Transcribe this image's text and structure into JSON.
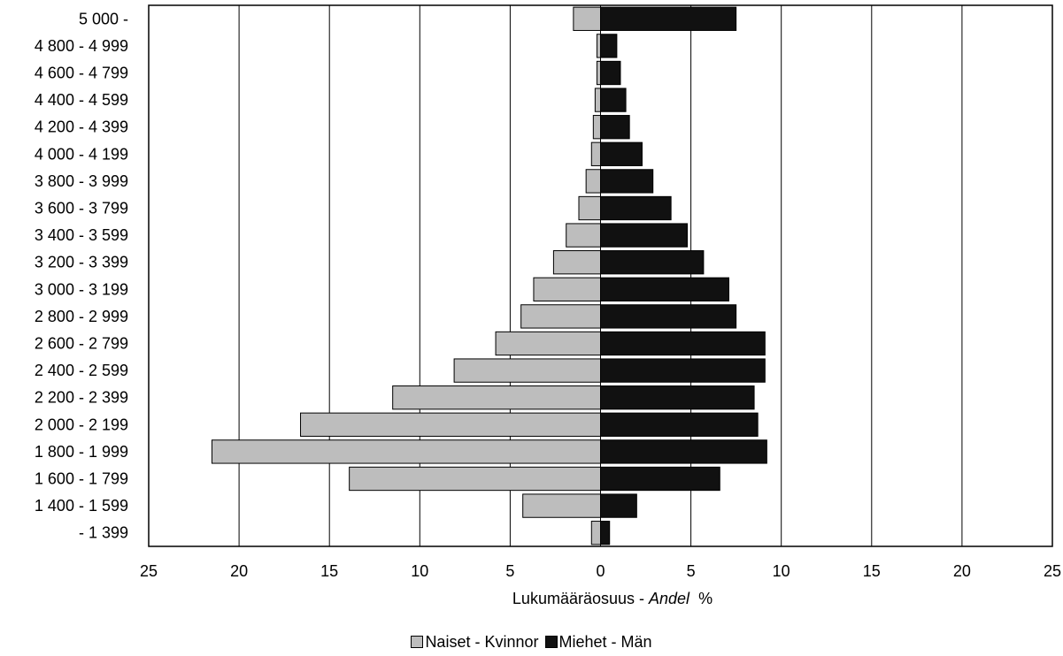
{
  "chart_data": {
    "type": "bar",
    "orientation": "horizontal",
    "categories": [
      "5 000 -",
      "4 800 - 4 999",
      "4 600 - 4 799",
      "4 400 - 4 599",
      "4 200 - 4 399",
      "4 000 - 4 199",
      "3 800 - 3 999",
      "3 600 - 3 799",
      "3 400 - 3 599",
      "3 200 - 3 399",
      "3 000 - 3 199",
      "2 800 - 2 999",
      "2 600 - 2 799",
      "2 400 - 2 599",
      "2 200 - 2 399",
      "2 000 - 2 199",
      "1 800 - 1 999",
      "1 600 - 1 799",
      "1 400 - 1 599",
      "- 1 399"
    ],
    "series": [
      {
        "name": "Naiset - Kvinnor",
        "direction": "left",
        "color": "#bdbdbd",
        "values": [
          1.5,
          0.2,
          0.2,
          0.3,
          0.4,
          0.5,
          0.8,
          1.2,
          1.9,
          2.6,
          3.7,
          4.4,
          5.8,
          8.1,
          11.5,
          16.6,
          21.5,
          13.9,
          4.3,
          0.5
        ]
      },
      {
        "name": "Miehet - Män",
        "direction": "right",
        "color": "#111111",
        "values": [
          7.5,
          0.9,
          1.1,
          1.4,
          1.6,
          2.3,
          2.9,
          3.9,
          4.8,
          5.7,
          7.1,
          7.5,
          9.1,
          9.1,
          8.5,
          8.7,
          9.2,
          6.6,
          2.0,
          0.5
        ]
      }
    ],
    "xlim": [
      -25,
      25
    ],
    "xticks": [
      {
        "value": -25,
        "label": "25"
      },
      {
        "value": -20,
        "label": "20"
      },
      {
        "value": -15,
        "label": "15"
      },
      {
        "value": -10,
        "label": "10"
      },
      {
        "value": -5,
        "label": "5"
      },
      {
        "value": 0,
        "label": "0"
      },
      {
        "value": 5,
        "label": "5"
      },
      {
        "value": 10,
        "label": "10"
      },
      {
        "value": 15,
        "label": "15"
      },
      {
        "value": 20,
        "label": "20"
      },
      {
        "value": 25,
        "label": "25"
      }
    ],
    "xlabel": {
      "main": "Lukumääräosuus - ",
      "italic": "Andel",
      "suffix": "  %"
    },
    "grid": "vertical",
    "legend_position": "bottom"
  }
}
